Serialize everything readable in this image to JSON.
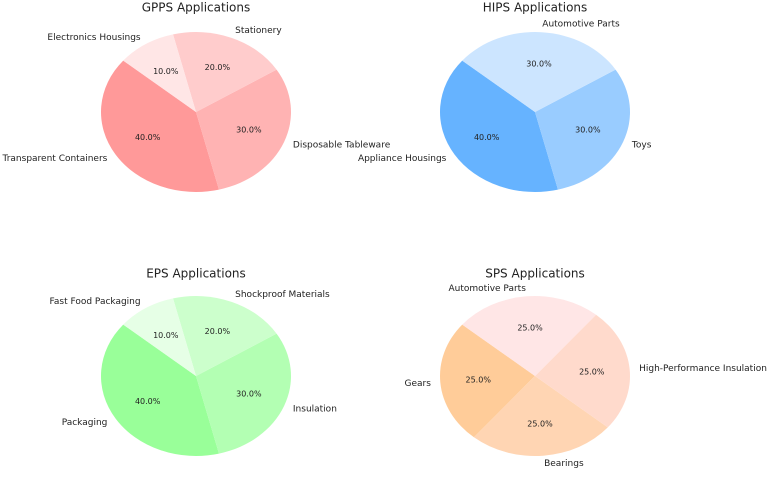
{
  "chart_data": [
    {
      "type": "pie",
      "title": "GPPS Applications",
      "categories": [
        "Transparent Containers",
        "Disposable Tableware",
        "Stationery",
        "Electronics Housings"
      ],
      "values": [
        40,
        30,
        20,
        10
      ],
      "value_labels": [
        "40.0%",
        "30.0%",
        "20.0%",
        "10.0%"
      ],
      "colors": [
        "#ff9999",
        "#ffb3b3",
        "#ffcccc",
        "#ffe6e6"
      ]
    },
    {
      "type": "pie",
      "title": "HIPS Applications",
      "categories": [
        "Appliance Housings",
        "Toys",
        "Automotive Parts"
      ],
      "values": [
        40,
        30,
        30
      ],
      "value_labels": [
        "40.0%",
        "30.0%",
        "30.0%"
      ],
      "colors": [
        "#66b3ff",
        "#99ccff",
        "#cce5ff"
      ]
    },
    {
      "type": "pie",
      "title": "EPS Applications",
      "categories": [
        "Packaging",
        "Insulation",
        "Shockproof Materials",
        "Fast Food Packaging"
      ],
      "values": [
        40,
        30,
        20,
        10
      ],
      "value_labels": [
        "40.0%",
        "30.0%",
        "20.0%",
        "10.0%"
      ],
      "colors": [
        "#99ff99",
        "#b3ffb3",
        "#ccffcc",
        "#e6ffe6"
      ]
    },
    {
      "type": "pie",
      "title": "SPS Applications",
      "categories": [
        "Gears",
        "Bearings",
        "High-Performance Insulation",
        "Automotive Parts"
      ],
      "values": [
        25,
        25,
        25,
        25
      ],
      "value_labels": [
        "25.0%",
        "25.0%",
        "25.0%",
        "25.0%"
      ],
      "colors": [
        "#ffcc99",
        "#ffd5b3",
        "#ffdacc",
        "#ffe6e6"
      ]
    }
  ]
}
